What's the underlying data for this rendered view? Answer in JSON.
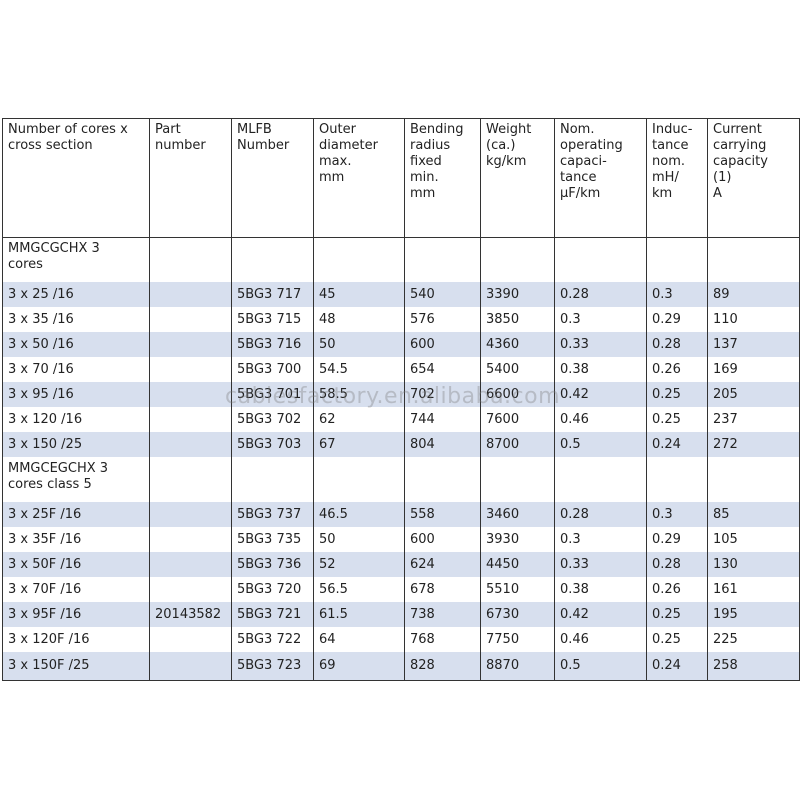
{
  "watermark": "cablesfactory.en.alibaba.com",
  "table": {
    "header": [
      "Number of cores x\ncross section",
      "Part\nnumber",
      "MLFB\nNumber",
      "Outer\ndiameter\nmax.\nmm",
      "Bending\nradius\nfixed\nmin.\nmm",
      "Weight\n(ca.)\nkg/km",
      "Nom.\noperating\ncapaci-\ntance\nμF/km",
      "Induc-\ntance\nnom.\nmH/\nkm",
      "Current\ncarrying\ncapacity\n(1)\nA"
    ],
    "groups": [
      {
        "title": "MMGCGCHX 3\ncores",
        "rows": [
          [
            "3 x 25 /16",
            null,
            "5BG3 717",
            "45",
            "540",
            "3390",
            "0.28",
            "0.3",
            "89"
          ],
          [
            "3 x 35 /16",
            null,
            "5BG3 715",
            "48",
            "576",
            "3850",
            "0.3",
            "0.29",
            "110"
          ],
          [
            "3 x 50 /16",
            null,
            "5BG3 716",
            "50",
            "600",
            "4360",
            "0.33",
            "0.28",
            "137"
          ],
          [
            "3 x 70 /16",
            null,
            "5BG3 700",
            "54.5",
            "654",
            "5400",
            "0.38",
            "0.26",
            "169"
          ],
          [
            "3 x 95 /16",
            null,
            "5BG3 701",
            "58.5",
            "702",
            "6600",
            "0.42",
            "0.25",
            "205"
          ],
          [
            "3 x 120 /16",
            null,
            "5BG3 702",
            "62",
            "744",
            "7600",
            "0.46",
            "0.25",
            "237"
          ],
          [
            "3 x 150 /25",
            null,
            "5BG3 703",
            "67",
            "804",
            "8700",
            "0.5",
            "0.24",
            "272"
          ]
        ]
      },
      {
        "title": "MMGCEGCHX 3\ncores class 5",
        "rows": [
          [
            "3 x 25F /16",
            null,
            "5BG3 737",
            "46.5",
            "558",
            "3460",
            "0.28",
            "0.3",
            "85"
          ],
          [
            "3 x 35F /16",
            null,
            "5BG3 735",
            "50",
            "600",
            "3930",
            "0.3",
            "0.29",
            "105"
          ],
          [
            "3 x 50F /16",
            null,
            "5BG3 736",
            "52",
            "624",
            "4450",
            "0.33",
            "0.28",
            "130"
          ],
          [
            "3 x 70F /16",
            null,
            "5BG3 720",
            "56.5",
            "678",
            "5510",
            "0.38",
            "0.26",
            "161"
          ],
          [
            "3 x 95F /16",
            "20143582",
            "5BG3 721",
            "61.5",
            "738",
            "6730",
            "0.42",
            "0.25",
            "195"
          ],
          [
            "3 x 120F /16",
            null,
            "5BG3 722",
            "64",
            "768",
            "7750",
            "0.46",
            "0.25",
            "225"
          ],
          [
            "3 x 150F /25",
            null,
            "5BG3 723",
            "69",
            "828",
            "8870",
            "0.5",
            "0.24",
            "258"
          ]
        ]
      }
    ]
  }
}
